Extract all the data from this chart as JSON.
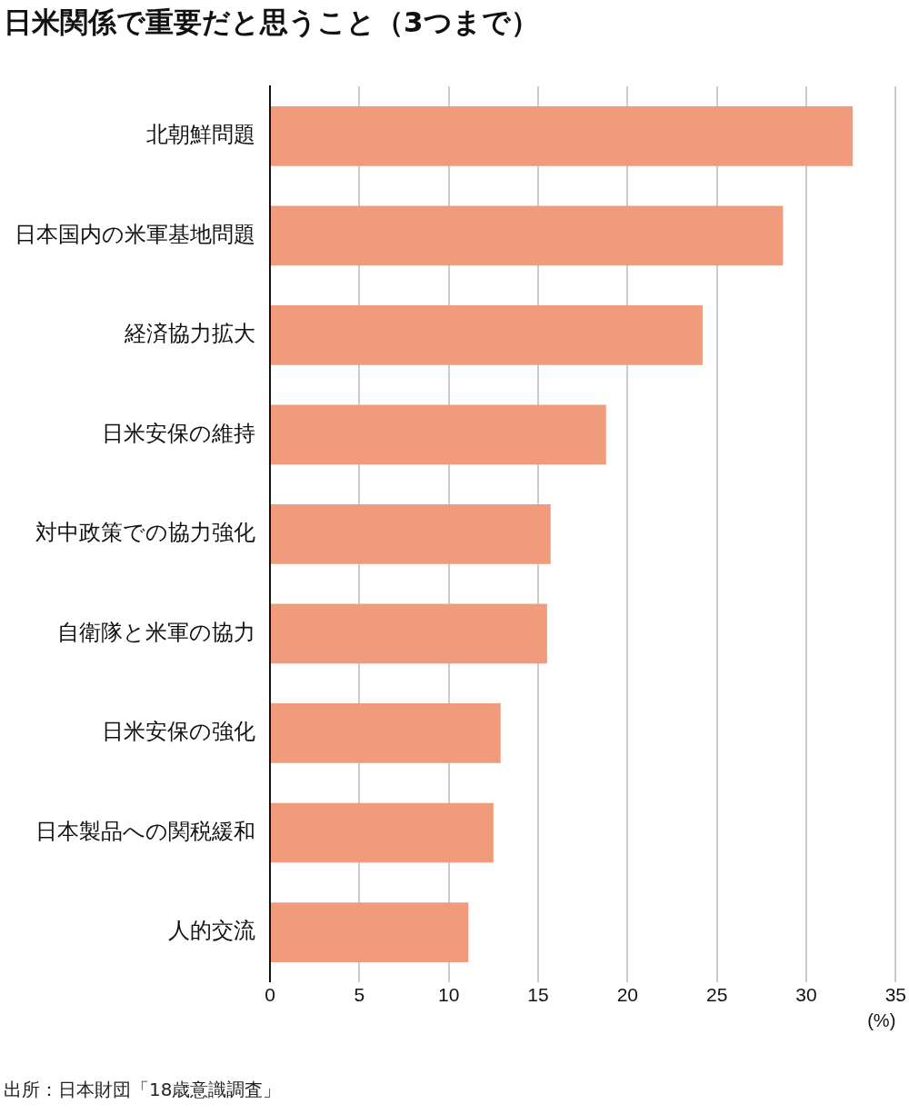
{
  "chart_data": {
    "type": "bar",
    "orientation": "horizontal",
    "title": "日米関係で重要だと思うこと（3つまで）",
    "xlabel": "(%)",
    "categories": [
      "北朝鮮問題",
      "日本国内の米軍基地問題",
      "経済協力拡大",
      "日米安保の維持",
      "対中政策での協力強化",
      "自衛隊と米軍の協力",
      "日米安保の強化",
      "日本製品への関税緩和",
      "人的交流"
    ],
    "values": [
      32.6,
      28.7,
      24.2,
      18.8,
      15.7,
      15.5,
      12.9,
      12.5,
      11.1
    ],
    "color": "#f09b7c",
    "xlim": [
      0,
      35
    ],
    "xticks": [
      0,
      5,
      10,
      15,
      20,
      25,
      30,
      35
    ],
    "grid": "x",
    "legend": false,
    "annotations": [
      "出所：日本財団「18歳意識調査」"
    ]
  }
}
